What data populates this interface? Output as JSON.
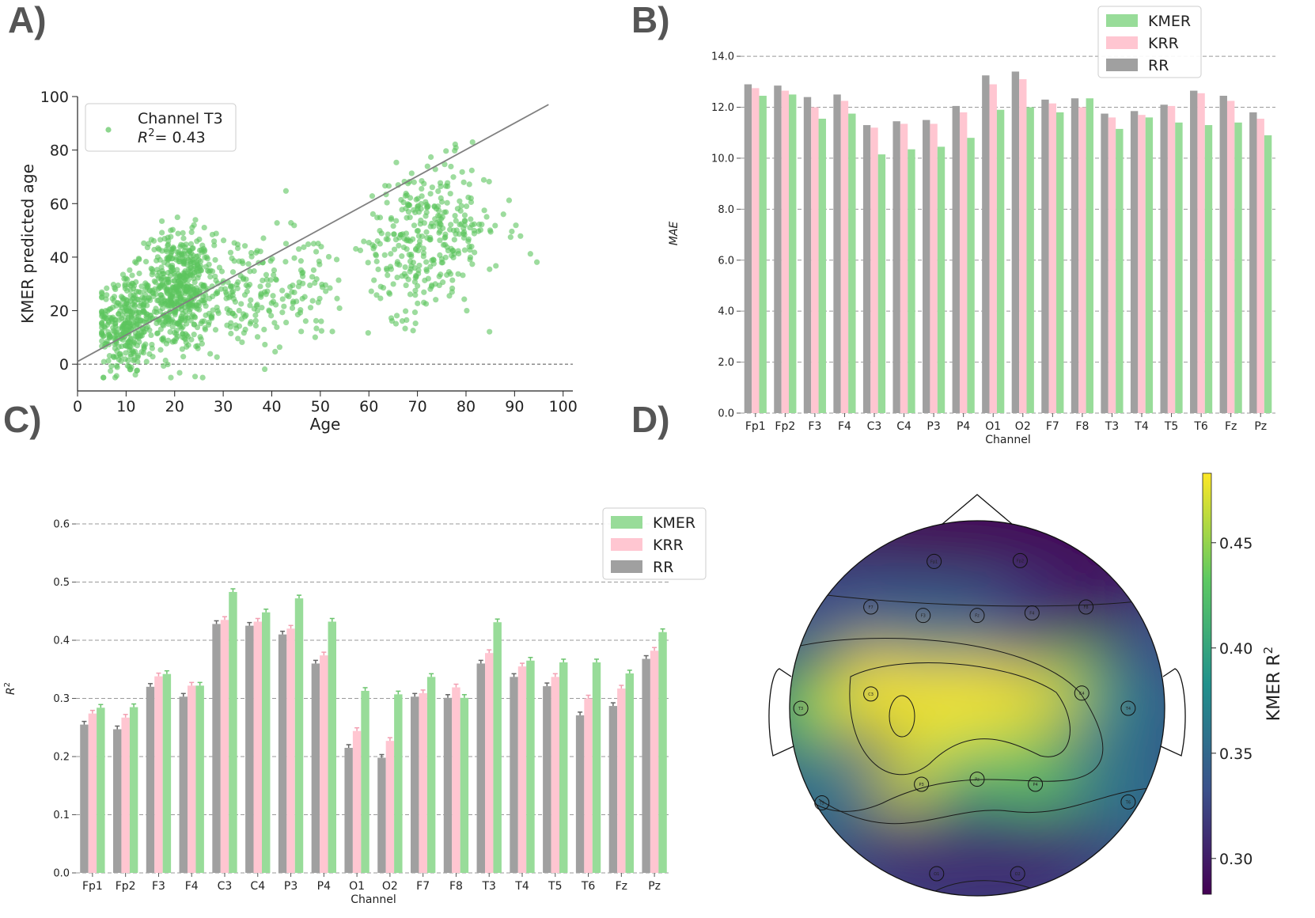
{
  "panels": {
    "a": "A)",
    "b": "B)",
    "c": "C)",
    "d": "D)"
  },
  "colors": {
    "kmer": "#98dc99",
    "krr": "#ffc6d1",
    "rr": "#a0a0a0",
    "scatter": "#5cc45e",
    "fit_line": "#808080"
  },
  "chart_data": [
    {
      "id": "A",
      "type": "scatter",
      "xlabel": "Age",
      "ylabel": "KMER predicted age",
      "xlim": [
        0,
        102
      ],
      "ylim": [
        -10,
        100
      ],
      "xticks": [
        0,
        10,
        20,
        30,
        40,
        50,
        60,
        70,
        80,
        90,
        100
      ],
      "yticks": [
        0,
        20,
        40,
        60,
        80,
        100
      ],
      "legend": {
        "placement": "top-left",
        "line1": "Channel T3",
        "line2_prefix": "R",
        "line2_sup": "2",
        "line2_suffix": "= 0.43"
      },
      "fit_line": {
        "x": [
          0,
          97
        ],
        "y": [
          1,
          97
        ]
      },
      "reference_line_y": 0,
      "point_clusters": [
        {
          "x_mean": 10,
          "x_sd": 3,
          "y_mean": 15,
          "y_sd": 10,
          "count": 320
        },
        {
          "x_mean": 21,
          "x_sd": 3.5,
          "y_mean": 27,
          "y_sd": 11,
          "count": 520
        },
        {
          "x_mean": 33,
          "x_sd": 6,
          "y_mean": 27,
          "y_sd": 11,
          "count": 160
        },
        {
          "x_mean": 47,
          "x_sd": 5,
          "y_mean": 30,
          "y_sd": 11,
          "count": 70
        },
        {
          "x_mean": 68,
          "x_sd": 4,
          "y_mean": 45,
          "y_sd": 14,
          "count": 180
        },
        {
          "x_mean": 77,
          "x_sd": 4,
          "y_mean": 52,
          "y_sd": 12,
          "count": 150
        },
        {
          "x_mean": 87,
          "x_sd": 5,
          "y_mean": 45,
          "y_sd": 14,
          "count": 14
        }
      ]
    },
    {
      "id": "B",
      "type": "bar",
      "xlabel": "Channel",
      "ylabel": "MAE",
      "ylim": [
        0,
        14.5
      ],
      "yticks": [
        0.0,
        2.0,
        4.0,
        6.0,
        8.0,
        10.0,
        12.0,
        14.0
      ],
      "grid": true,
      "legend": {
        "placement": "top-right"
      },
      "categories": [
        "Fp1",
        "Fp2",
        "F3",
        "F4",
        "C3",
        "C4",
        "P3",
        "P4",
        "O1",
        "O2",
        "F7",
        "F8",
        "T3",
        "T4",
        "T5",
        "T6",
        "Fz",
        "Pz"
      ],
      "series": [
        {
          "name": "RR",
          "values": [
            12.9,
            12.85,
            12.4,
            12.5,
            11.3,
            11.45,
            11.5,
            12.05,
            13.25,
            13.4,
            12.3,
            12.35,
            11.75,
            11.85,
            12.1,
            12.65,
            12.45,
            11.8
          ]
        },
        {
          "name": "KRR",
          "values": [
            12.75,
            12.65,
            12.0,
            12.25,
            11.2,
            11.35,
            11.35,
            11.8,
            12.9,
            13.1,
            12.15,
            12.0,
            11.6,
            11.7,
            12.05,
            12.55,
            12.25,
            11.55
          ]
        },
        {
          "name": "KMER",
          "values": [
            12.45,
            12.5,
            11.55,
            11.75,
            10.15,
            10.35,
            10.45,
            10.8,
            11.9,
            12.0,
            11.8,
            12.35,
            11.15,
            11.6,
            11.4,
            11.3,
            11.4,
            10.9
          ]
        }
      ]
    },
    {
      "id": "C",
      "type": "bar",
      "xlabel": "Channel",
      "ylabel_prefix": "R",
      "ylabel_sup": "2",
      "ylim": [
        0,
        0.63
      ],
      "yticks": [
        0.0,
        0.1,
        0.2,
        0.3,
        0.4,
        0.5,
        0.6
      ],
      "grid": true,
      "legend": {
        "placement": "top-right"
      },
      "categories": [
        "Fp1",
        "Fp2",
        "F3",
        "F4",
        "C3",
        "C4",
        "P3",
        "P4",
        "O1",
        "O2",
        "F7",
        "F8",
        "T3",
        "T4",
        "T5",
        "T6",
        "Fz",
        "Pz"
      ],
      "series": [
        {
          "name": "RR",
          "values": [
            0.255,
            0.247,
            0.32,
            0.303,
            0.428,
            0.425,
            0.41,
            0.36,
            0.215,
            0.198,
            0.303,
            0.301,
            0.36,
            0.337,
            0.321,
            0.271,
            0.287,
            0.368
          ]
        },
        {
          "name": "KRR",
          "values": [
            0.274,
            0.267,
            0.338,
            0.322,
            0.435,
            0.432,
            0.42,
            0.374,
            0.244,
            0.227,
            0.309,
            0.319,
            0.378,
            0.355,
            0.337,
            0.3,
            0.317,
            0.382
          ]
        },
        {
          "name": "KMER",
          "values": [
            0.284,
            0.285,
            0.342,
            0.322,
            0.483,
            0.448,
            0.472,
            0.432,
            0.313,
            0.307,
            0.337,
            0.301,
            0.431,
            0.365,
            0.362,
            0.362,
            0.343,
            0.414
          ]
        }
      ]
    },
    {
      "id": "D",
      "type": "heatmap",
      "colorbar": {
        "label_prefix": "KMER R",
        "label_sup": "2",
        "ticks": [
          0.3,
          0.35,
          0.4,
          0.45
        ],
        "tick_labels": [
          "0.30",
          "0.35",
          "0.40",
          "0.45"
        ],
        "range": [
          0.283,
          0.483
        ]
      },
      "electrodes": [
        {
          "label": "Fp1",
          "value": 0.284
        },
        {
          "label": "Fp2",
          "value": 0.285
        },
        {
          "label": "F7",
          "value": 0.337
        },
        {
          "label": "F3",
          "value": 0.342
        },
        {
          "label": "Fz",
          "value": 0.343
        },
        {
          "label": "F4",
          "value": 0.322
        },
        {
          "label": "F8",
          "value": 0.301
        },
        {
          "label": "T3",
          "value": 0.431
        },
        {
          "label": "C3",
          "value": 0.483
        },
        {
          "label": "C4",
          "value": 0.448
        },
        {
          "label": "T4",
          "value": 0.365
        },
        {
          "label": "T5",
          "value": 0.362
        },
        {
          "label": "P3",
          "value": 0.472
        },
        {
          "label": "Pz",
          "value": 0.414
        },
        {
          "label": "P4",
          "value": 0.432
        },
        {
          "label": "T6",
          "value": 0.362
        },
        {
          "label": "O1",
          "value": 0.313
        },
        {
          "label": "O2",
          "value": 0.307
        }
      ]
    }
  ]
}
